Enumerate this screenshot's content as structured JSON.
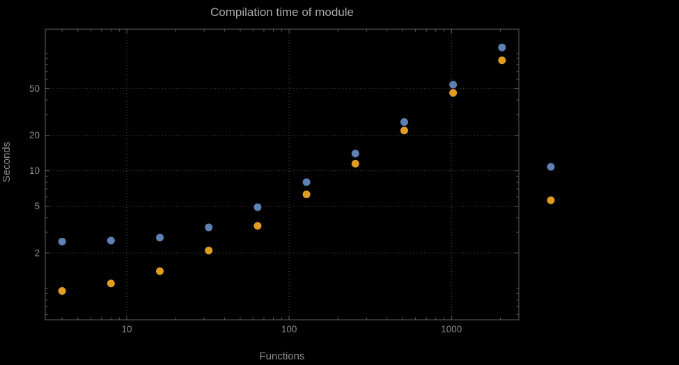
{
  "chart_data": {
    "type": "scatter",
    "title": "Compilation time of module",
    "xlabel": "Functions",
    "ylabel": "Seconds",
    "xscale": "log",
    "yscale": "log",
    "xlim": [
      3.15,
      2600
    ],
    "ylim": [
      0.54,
      160
    ],
    "x_ticks": [
      10,
      100,
      1000
    ],
    "y_ticks": [
      2,
      5,
      10,
      20,
      50
    ],
    "grid": "dotted",
    "legend_position": "right-outside",
    "x": [
      4,
      8,
      16,
      32,
      64,
      128,
      256,
      512,
      1024,
      2048
    ],
    "series": [
      {
        "name": "blue",
        "color": "#5e81b5",
        "values": [
          2.5,
          2.55,
          2.7,
          3.3,
          4.9,
          8.0,
          14,
          26,
          54,
          112
        ]
      },
      {
        "name": "orange",
        "color": "#e19c24",
        "values": [
          0.95,
          1.1,
          1.4,
          2.1,
          3.4,
          6.3,
          11.5,
          22,
          46,
          87
        ]
      }
    ],
    "colors": {
      "frame": "#5f5f5f",
      "grid": "#4e4e4e",
      "tick": "#5f5f5f",
      "tick_label": "#8d8d8d",
      "axis_label": "#8d8d8d",
      "title": "#a9a9a9"
    }
  }
}
